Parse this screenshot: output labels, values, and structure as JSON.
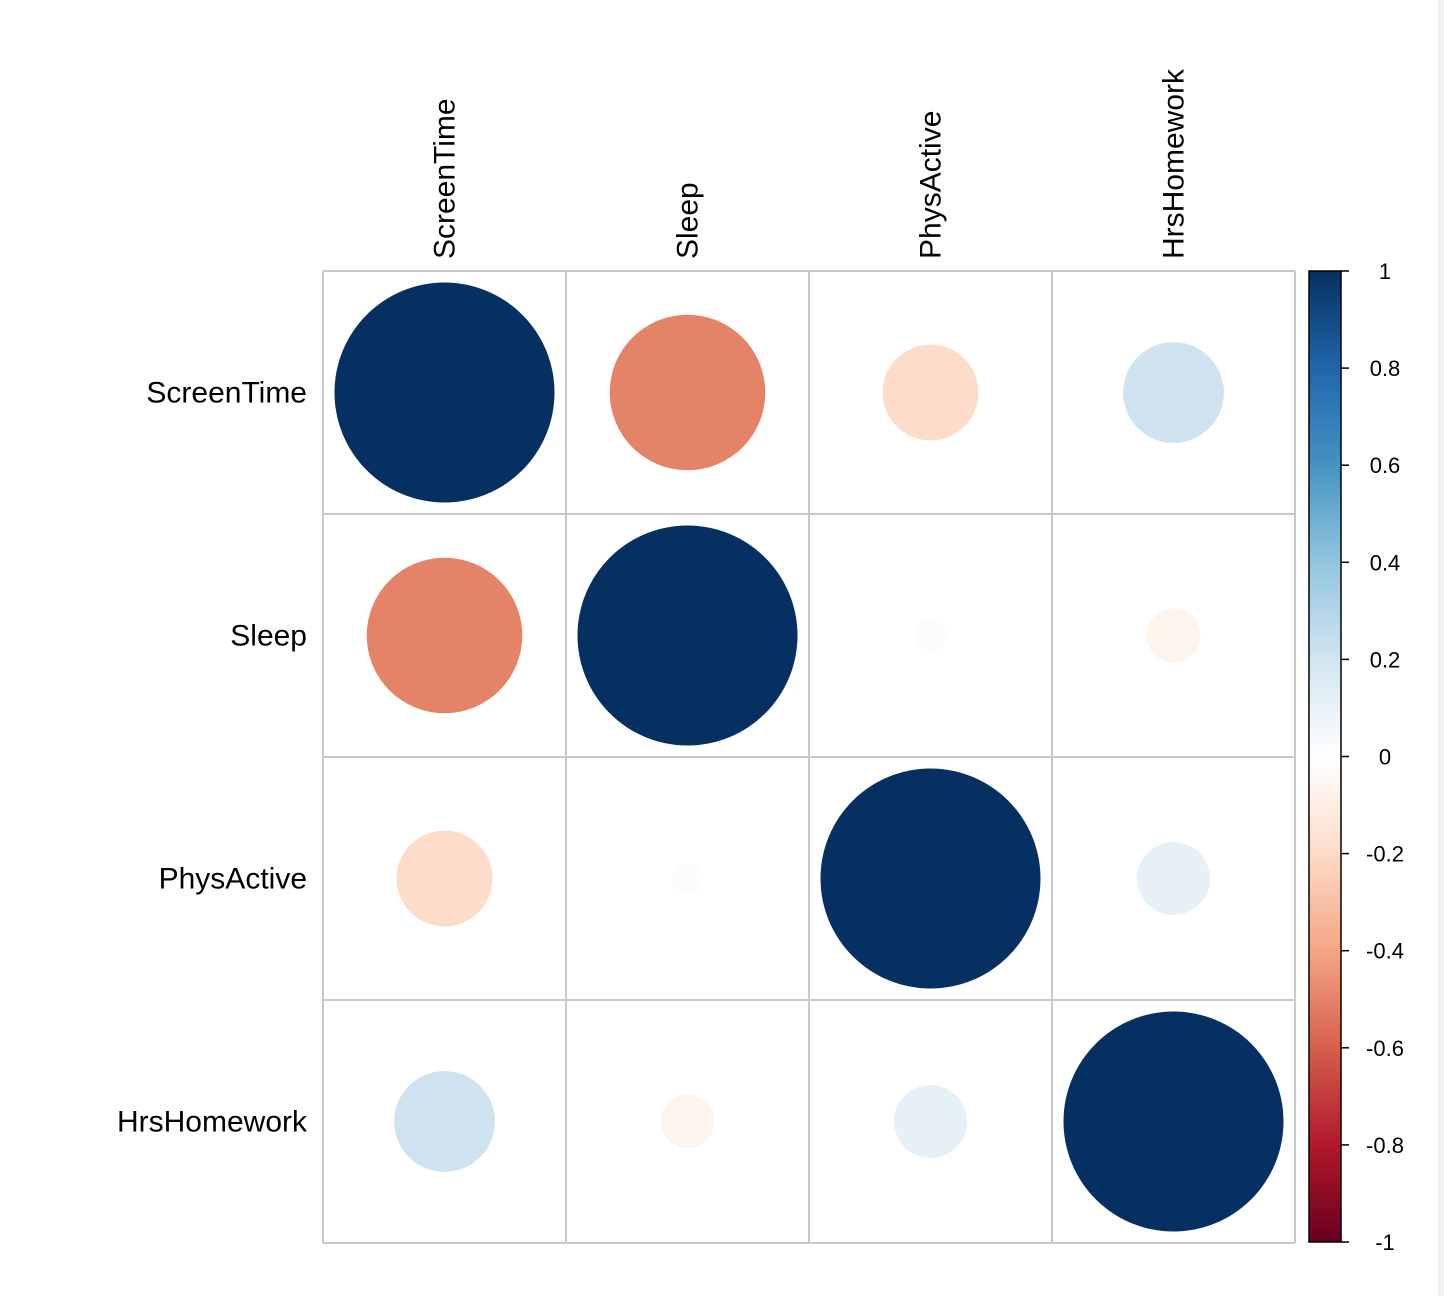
{
  "chart_data": {
    "type": "heatmap",
    "style": "corrplot-circle",
    "variables": [
      "ScreenTime",
      "Sleep",
      "PhysActive",
      "HrsHomework"
    ],
    "matrix": [
      [
        1.0,
        -0.5,
        -0.19,
        0.21
      ],
      [
        -0.5,
        1.0,
        0.02,
        -0.06
      ],
      [
        -0.19,
        0.02,
        1.0,
        0.11
      ],
      [
        0.21,
        -0.06,
        0.11,
        1.0
      ]
    ],
    "colorbar": {
      "range": [
        -1,
        1
      ],
      "ticks": [
        "1",
        "0.8",
        "0.6",
        "0.4",
        "0.2",
        "0",
        "-0.2",
        "-0.4",
        "-0.6",
        "-0.8",
        "-1"
      ],
      "tick_values": [
        1,
        0.8,
        0.6,
        0.4,
        0.2,
        0,
        -0.2,
        -0.4,
        -0.6,
        -0.8,
        -1
      ],
      "palette": [
        "#67001F",
        "#B2182B",
        "#D6604D",
        "#F4A582",
        "#FDDBC7",
        "#FFFFFF",
        "#D1E5F0",
        "#92C5DE",
        "#4393C3",
        "#2166AC",
        "#053061"
      ]
    },
    "grid_color": "#C8C8C8"
  }
}
